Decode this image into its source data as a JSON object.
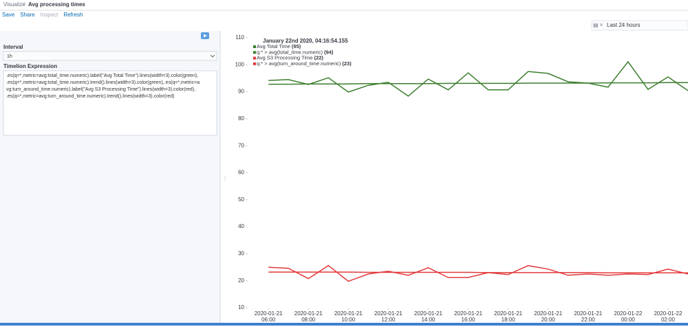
{
  "breadcrumb": {
    "parent": "Visualize",
    "current": "Avg processing times"
  },
  "menu": [
    "Save",
    "Share",
    "Inspect",
    "Refresh"
  ],
  "sidebar": {
    "interval_label": "Interval",
    "interval_value": "1h",
    "expression_label": "Timelion Expression",
    "expression_lines": [
      ".es(q=*,metric=avg:total_time.numeric).label(\"Avg Total Time\").lines(width=3).color(green),",
      ".es(q=*,metric=avg:total_time.numeric).trend().lines(width=3).color(green),.es(q=*,metric=a",
      "vg:turn_around_time.numeric).label(\"Avg S3 Processing  Time\").lines(width=3).color(red),",
      ".es(q=*,metric=avg:turn_around_time.numeric).trend().lines(width=3).color(red)"
    ]
  },
  "time_picker": "Last 24 hours",
  "chart_data": {
    "type": "line",
    "legend_title": "January 22nd 2020, 04:16:54.155",
    "legend_values": [
      "(95)",
      "(94)",
      "(22)",
      "(23)"
    ],
    "x": [
      "2020-01-21 06:00",
      "2020-01-21 07:00",
      "2020-01-21 08:00",
      "2020-01-21 09:00",
      "2020-01-21 10:00",
      "2020-01-21 11:00",
      "2020-01-21 12:00",
      "2020-01-21 13:00",
      "2020-01-21 14:00",
      "2020-01-21 15:00",
      "2020-01-21 16:00",
      "2020-01-21 17:00",
      "2020-01-21 18:00",
      "2020-01-21 19:00",
      "2020-01-21 20:00",
      "2020-01-21 21:00",
      "2020-01-21 22:00",
      "2020-01-21 23:00",
      "2020-01-22 00:00",
      "2020-01-22 01:00",
      "2020-01-22 02:00",
      "2020-01-22 03:00"
    ],
    "series": [
      {
        "name": "Avg Total Time",
        "color": "#3a7d2c",
        "values": [
          94.2,
          94.5,
          92.7,
          95.2,
          89.9,
          92.4,
          93.5,
          88.4,
          94.7,
          90.7,
          97.0,
          90.7,
          90.7,
          97.5,
          96.8,
          93.7,
          93.2,
          91.7,
          101.1,
          90.9,
          95.5,
          90.4
        ]
      },
      {
        "name": "q:* > avg(total_time.numeric)",
        "color": "#3a7d2c",
        "values": [
          92.8,
          92.8,
          92.9,
          92.9,
          92.9,
          93.0,
          93.0,
          93.0,
          93.0,
          93.1,
          93.1,
          93.1,
          93.1,
          93.2,
          93.2,
          93.2,
          93.2,
          93.3,
          93.3,
          93.3,
          93.4,
          93.4
        ]
      },
      {
        "name": "Avg S3 Processing Time",
        "color": "#e2383a",
        "values": [
          25.0,
          24.6,
          20.8,
          25.6,
          19.8,
          22.5,
          23.5,
          22.0,
          24.8,
          21.2,
          21.2,
          23.0,
          22.3,
          25.6,
          24.3,
          22.0,
          22.5,
          22.0,
          22.5,
          22.3,
          24.3,
          22.5
        ]
      },
      {
        "name": "q:* > avg(turn_around_time.numeric)",
        "color": "#e2383a",
        "values": [
          23.2,
          23.2,
          23.2,
          23.2,
          23.2,
          23.1,
          23.1,
          23.1,
          23.1,
          23.1,
          23.1,
          23.0,
          23.0,
          23.0,
          23.0,
          23.0,
          23.0,
          22.9,
          22.9,
          22.9,
          22.9,
          22.9
        ]
      }
    ],
    "xlim": [
      "2020-01-21 05:08",
      "2020-01-22 03:00"
    ],
    "xticks": [
      "2020-01-21 06:00",
      "2020-01-21 08:00",
      "2020-01-21 10:00",
      "2020-01-21 12:00",
      "2020-01-21 14:00",
      "2020-01-21 16:00",
      "2020-01-21 18:00",
      "2020-01-21 20:00",
      "2020-01-21 22:00",
      "2020-01-22 00:00",
      "2020-01-22 02:00"
    ],
    "ylim": [
      10,
      110
    ],
    "yticks": [
      10,
      20,
      30,
      40,
      50,
      60,
      70,
      80,
      90,
      100,
      110
    ],
    "grid": false
  }
}
